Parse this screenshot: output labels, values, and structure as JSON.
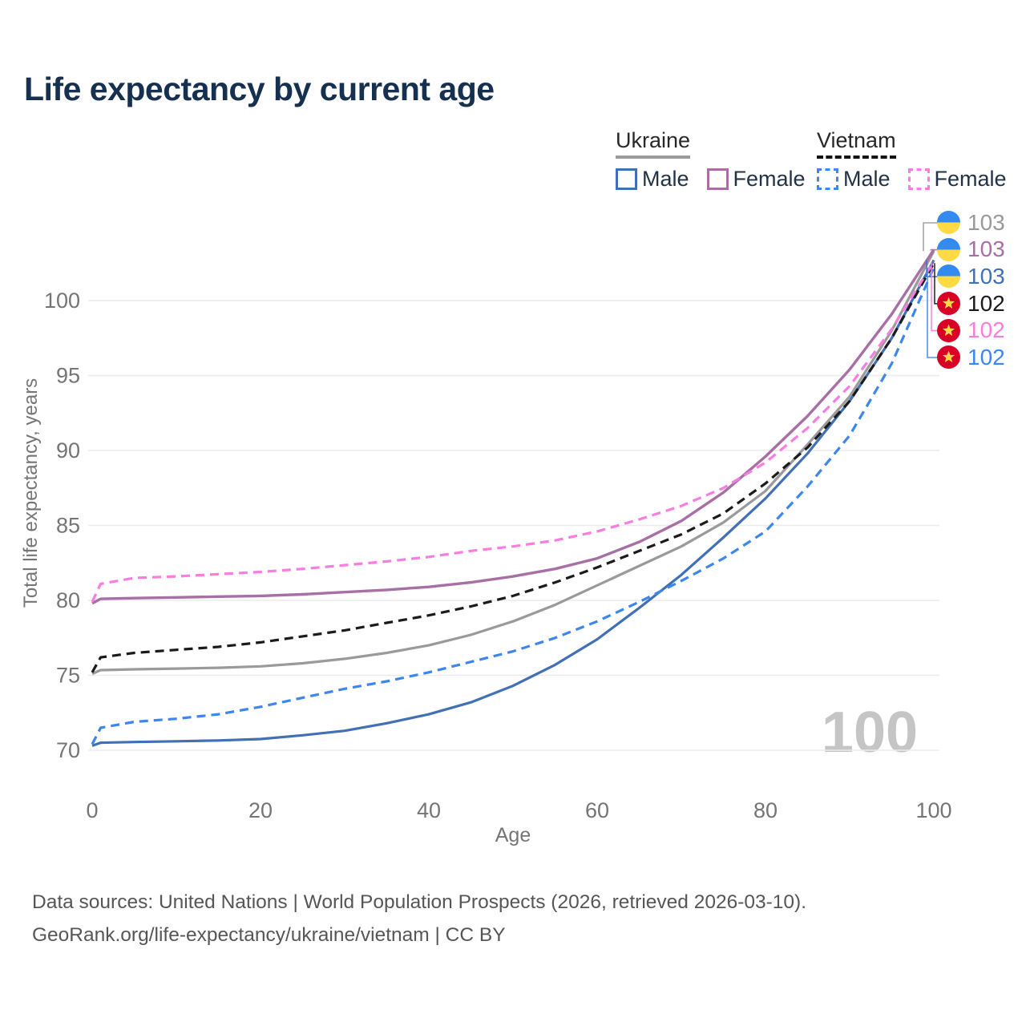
{
  "title": "Life expectancy by current age",
  "legend": {
    "groups": [
      {
        "name": "Ukraine",
        "underline_style": "solid",
        "underline_color": "#9b9b9b",
        "items": [
          {
            "label": "Male",
            "color": "#4170b4",
            "dashed": false
          },
          {
            "label": "Female",
            "color": "#a86fa5",
            "dashed": false
          }
        ]
      },
      {
        "name": "Vietnam",
        "underline_style": "dashed",
        "underline_color": "#141414",
        "items": [
          {
            "label": "Male",
            "color": "#3d86ee",
            "dashed": true
          },
          {
            "label": "Female",
            "color": "#f97ce1",
            "dashed": true
          }
        ]
      }
    ]
  },
  "chart_data": {
    "type": "line",
    "title": "Life expectancy by current age",
    "xlabel": "Age",
    "ylabel": "Total life expectancy, years",
    "xlim": [
      0,
      100
    ],
    "ylim": [
      68.5,
      104
    ],
    "xticks": [
      0,
      20,
      40,
      60,
      80,
      100
    ],
    "yticks": [
      70,
      75,
      80,
      85,
      90,
      95,
      100
    ],
    "grid": "horizontal",
    "legend_position": "top-right",
    "watermark": "100",
    "x": [
      0,
      1,
      5,
      10,
      15,
      20,
      25,
      30,
      35,
      40,
      45,
      50,
      55,
      60,
      65,
      70,
      75,
      80,
      85,
      90,
      95,
      100
    ],
    "series": [
      {
        "key": "ukraine-total",
        "name": "Ukraine total",
        "country": "Ukraine",
        "flag": "ukraine",
        "color": "#9a9a9a",
        "dashed": false,
        "width": 3.2,
        "end_label": "103",
        "values": [
          75.1,
          75.35,
          75.4,
          75.45,
          75.5,
          75.6,
          75.8,
          76.1,
          76.5,
          77.0,
          77.7,
          78.6,
          79.7,
          81.0,
          82.3,
          83.6,
          85.2,
          87.3,
          90.4,
          93.6,
          98.0,
          103.3
        ]
      },
      {
        "key": "ukraine-female",
        "name": "Ukraine female",
        "country": "Ukraine",
        "flag": "ukraine",
        "color": "#a86fa5",
        "dashed": false,
        "width": 3.4,
        "end_label": "103",
        "values": [
          79.8,
          80.1,
          80.15,
          80.2,
          80.25,
          80.3,
          80.4,
          80.55,
          80.7,
          80.9,
          81.2,
          81.6,
          82.1,
          82.8,
          83.9,
          85.3,
          87.2,
          89.6,
          92.3,
          95.4,
          99.1,
          103.4
        ]
      },
      {
        "key": "ukraine-male",
        "name": "Ukraine male",
        "country": "Ukraine",
        "flag": "ukraine",
        "color": "#4170b4",
        "dashed": false,
        "width": 3.2,
        "end_label": "103",
        "values": [
          70.3,
          70.5,
          70.55,
          70.6,
          70.65,
          70.75,
          71.0,
          71.3,
          71.8,
          72.4,
          73.2,
          74.3,
          75.7,
          77.4,
          79.5,
          81.7,
          84.2,
          86.8,
          89.8,
          93.3,
          97.5,
          102.7
        ]
      },
      {
        "key": "vietnam-total",
        "name": "Vietnam total",
        "country": "Vietnam",
        "flag": "vietnam",
        "color": "#1b1b1b",
        "dashed": true,
        "width": 3.2,
        "end_label": "102",
        "values": [
          75.2,
          76.2,
          76.5,
          76.7,
          76.9,
          77.2,
          77.6,
          78.0,
          78.5,
          79.0,
          79.6,
          80.3,
          81.2,
          82.2,
          83.3,
          84.4,
          85.8,
          87.8,
          90.2,
          93.3,
          97.5,
          102.5
        ]
      },
      {
        "key": "vietnam-female",
        "name": "Vietnam female",
        "country": "Vietnam",
        "flag": "vietnam",
        "color": "#f97ce1",
        "dashed": true,
        "width": 3.2,
        "end_label": "102",
        "values": [
          79.9,
          81.1,
          81.5,
          81.6,
          81.75,
          81.9,
          82.1,
          82.35,
          82.6,
          82.9,
          83.3,
          83.6,
          84.0,
          84.6,
          85.4,
          86.3,
          87.5,
          89.2,
          91.5,
          94.3,
          98.1,
          102.6
        ]
      },
      {
        "key": "vietnam-male",
        "name": "Vietnam male",
        "country": "Vietnam",
        "flag": "vietnam",
        "color": "#3d86ee",
        "dashed": true,
        "width": 3.2,
        "end_label": "102",
        "values": [
          70.4,
          71.5,
          71.9,
          72.1,
          72.4,
          72.9,
          73.5,
          74.1,
          74.6,
          75.2,
          75.9,
          76.6,
          77.5,
          78.6,
          79.9,
          81.3,
          82.8,
          84.6,
          87.6,
          91.0,
          95.8,
          102.2
        ]
      }
    ]
  },
  "icons": {
    "ukraine_flag": {
      "top": "#338AF3",
      "bottom": "#FFDA44"
    },
    "vietnam_flag": {
      "bg": "#D80027",
      "star": "#FFDA44"
    }
  },
  "colors": {
    "grid": "#ebebeb",
    "axis_text": "#757575",
    "title_text": "#16314f",
    "watermark": "#c5c5c5",
    "footer_text": "#565656"
  },
  "footer": {
    "line1": "Data sources: United Nations | World Population Prospects (2026, retrieved 2026-03-10).",
    "line2": "GeoRank.org/life-expectancy/ukraine/vietnam | CC BY"
  }
}
